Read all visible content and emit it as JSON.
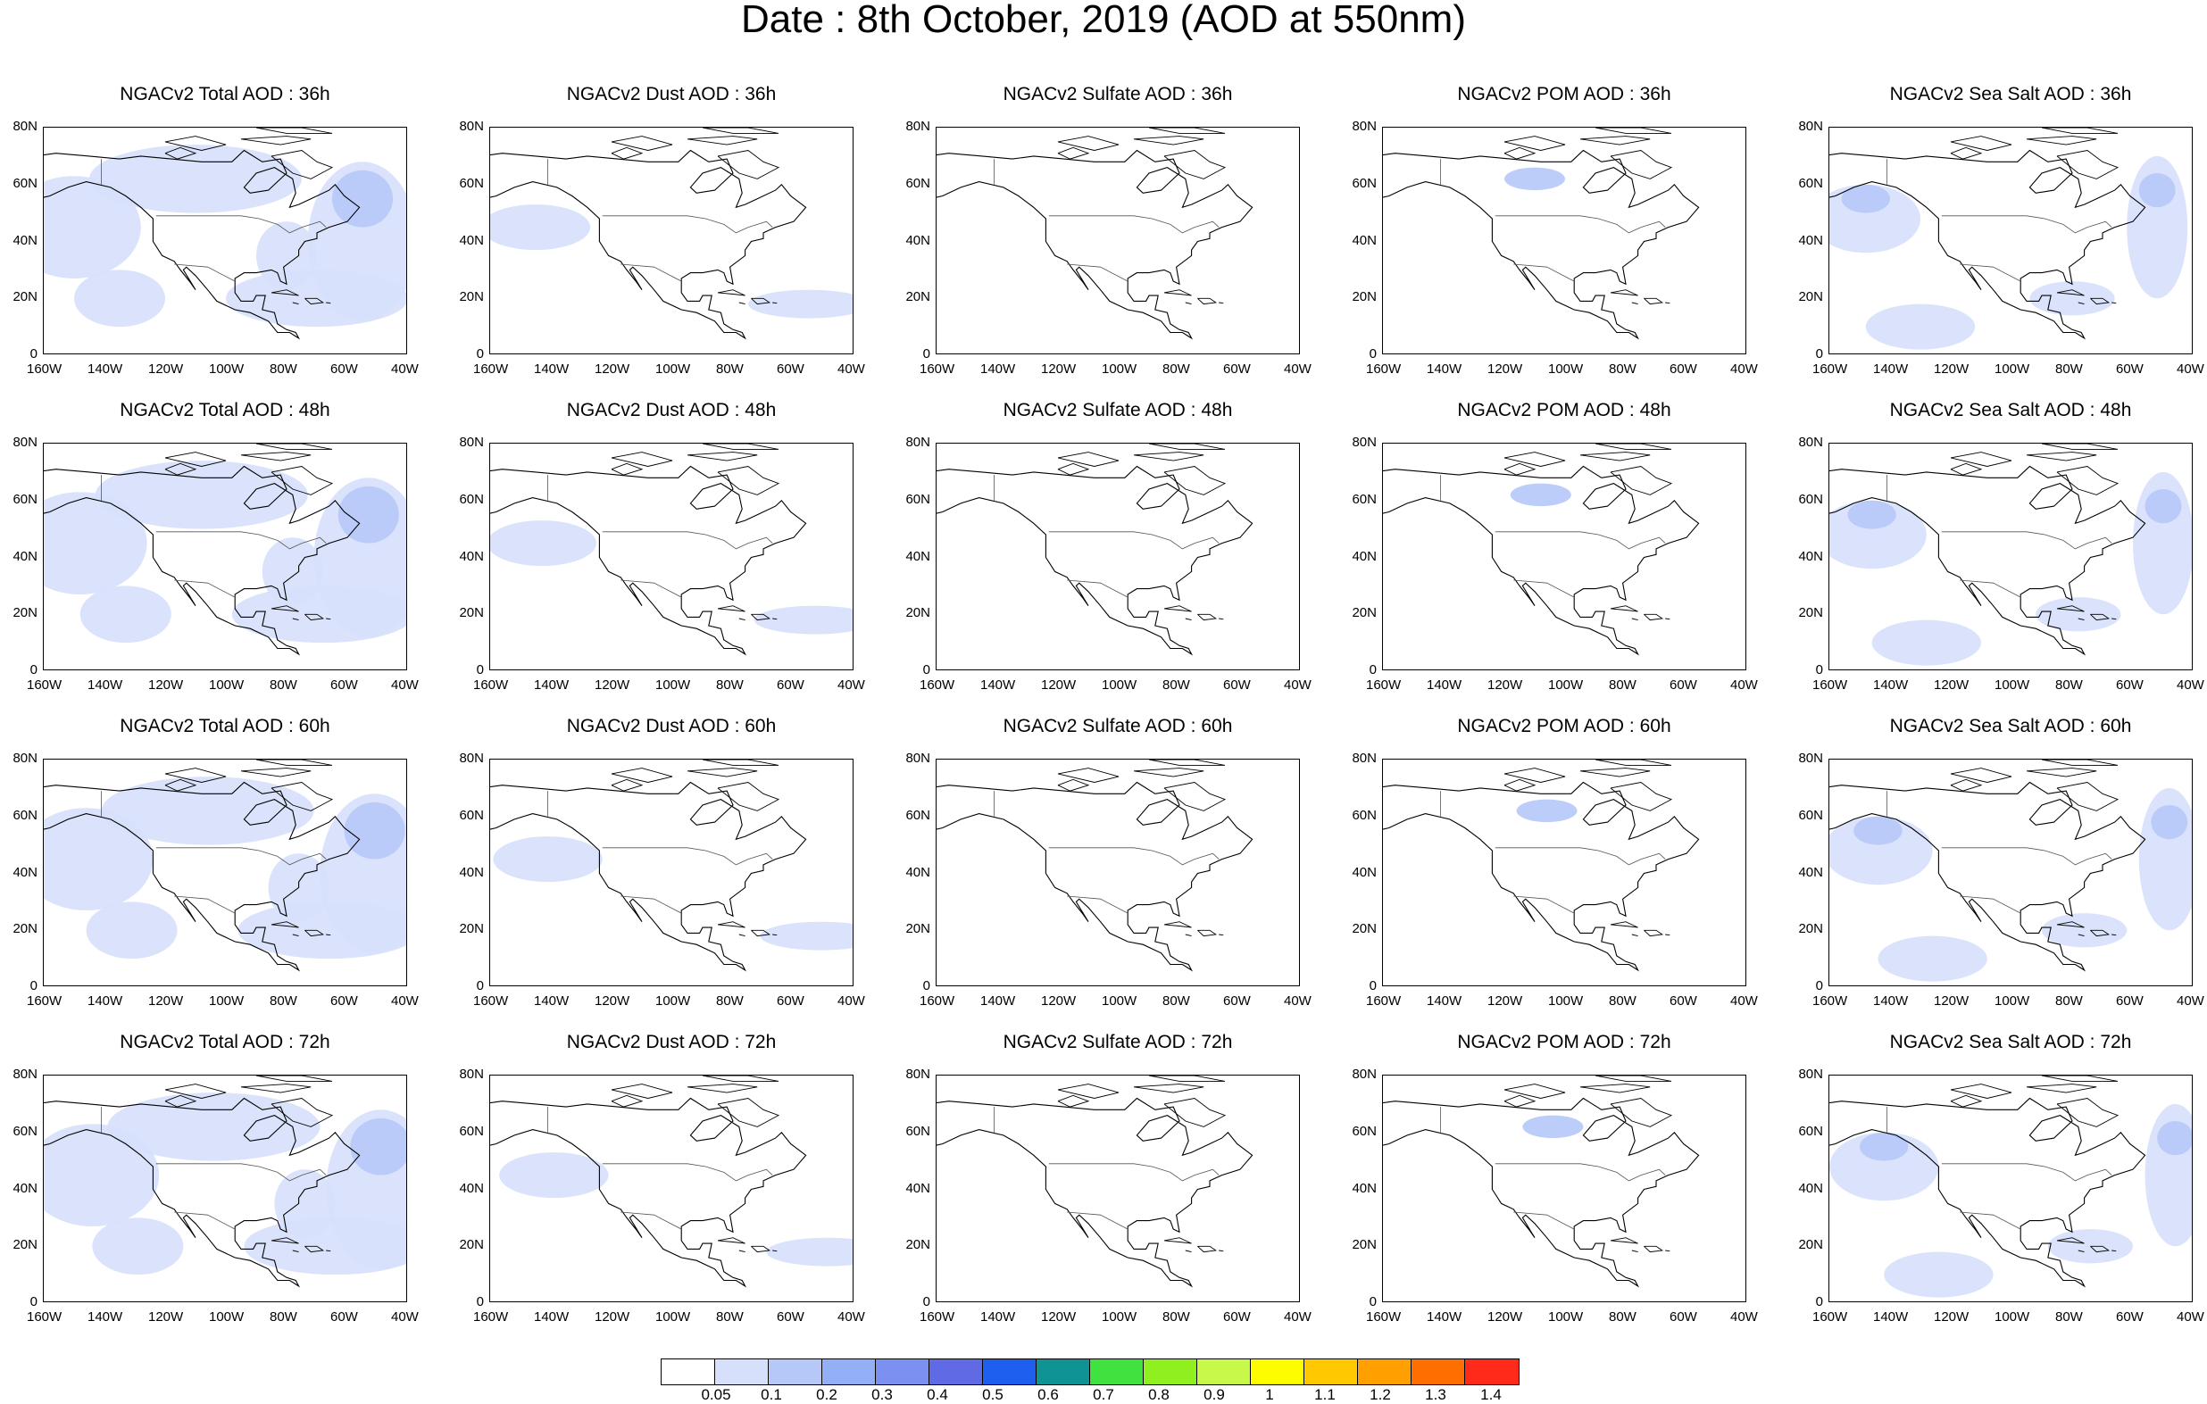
{
  "title": "Date : 8th October, 2019 (AOD at 550nm)",
  "panels": [
    [
      "NGACv2 Total AOD : 36h",
      "NGACv2 Dust AOD : 36h",
      "NGACv2 Sulfate AOD : 36h",
      "NGACv2 POM AOD : 36h",
      "NGACv2 Sea Salt AOD : 36h"
    ],
    [
      "NGACv2 Total AOD : 48h",
      "NGACv2 Dust AOD : 48h",
      "NGACv2 Sulfate AOD : 48h",
      "NGACv2 POM AOD : 48h",
      "NGACv2 Sea Salt AOD : 48h"
    ],
    [
      "NGACv2 Total AOD : 60h",
      "NGACv2 Dust AOD : 60h",
      "NGACv2 Sulfate AOD : 60h",
      "NGACv2 POM AOD : 60h",
      "NGACv2 Sea Salt AOD : 60h"
    ],
    [
      "NGACv2 Total AOD : 72h",
      "NGACv2 Dust AOD : 72h",
      "NGACv2 Sulfate AOD : 72h",
      "NGACv2 POM AOD : 72h",
      "NGACv2 Sea Salt  AOD : 72h"
    ]
  ],
  "lon_ticks": [
    "160W",
    "140W",
    "120W",
    "100W",
    "80W",
    "60W",
    "40W"
  ],
  "lat_ticks": [
    "80N",
    "60N",
    "40N",
    "20N",
    "0"
  ],
  "colorbar": {
    "colors": [
      "#ffffff",
      "#d6e0fb",
      "#b6c8f8",
      "#93b0f6",
      "#7b90f0",
      "#5f6ae4",
      "#1f5ff0",
      "#109393",
      "#3fe23f",
      "#8fef1f",
      "#c8f94a",
      "#fdfd00",
      "#ffc800",
      "#ffa000",
      "#ff6e00",
      "#ff2a1a"
    ],
    "labels": [
      "0.05",
      "0.1",
      "0.2",
      "0.3",
      "0.4",
      "0.5",
      "0.6",
      "0.7",
      "0.8",
      "0.9",
      "1",
      "1.1",
      "1.2",
      "1.3",
      "1.4"
    ]
  }
}
